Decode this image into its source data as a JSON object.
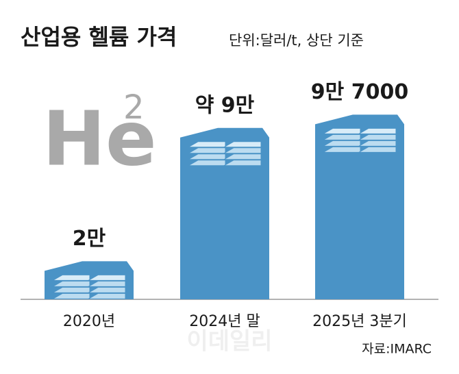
{
  "chart_data": {
    "type": "bar",
    "title": "산업용 헬륨 가격",
    "subtitle": "단위:달러/t, 상단 기준",
    "categories": [
      "2020년",
      "2024년 말",
      "2025년 3분기"
    ],
    "values": [
      20000,
      90000,
      97000
    ],
    "value_labels": [
      "2만",
      "약 9만",
      "9만 7000"
    ],
    "color": "#4a93c6",
    "decoration": {
      "symbol": "He",
      "superscript": "2"
    },
    "watermark": "이데일리",
    "source": "자료:IMARC"
  }
}
